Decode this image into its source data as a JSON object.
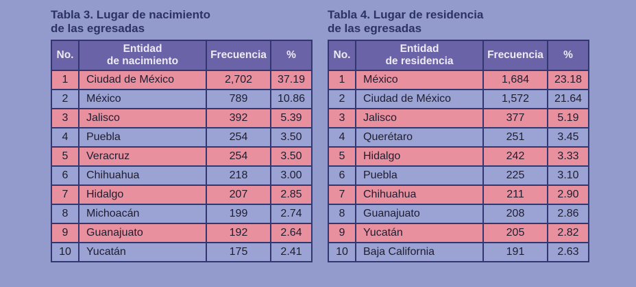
{
  "colors": {
    "page_background": "#929bcc",
    "header_background": "#6b63a7",
    "header_text": "#edeaf3",
    "row_pink": "#e9909f",
    "row_blue": "#9aa3d3",
    "border": "#32366e",
    "cell_text": "#1d1c30",
    "title_text": "#2c3263"
  },
  "tables": [
    {
      "title": [
        "Tabla 3. Lugar de nacimiento",
        "de las egresadas"
      ],
      "columns": {
        "no": "No.",
        "entity": [
          "Entidad",
          "de nacimiento"
        ],
        "frequency": "Frecuencia",
        "percent": "%"
      },
      "rows": [
        [
          "1",
          "Ciudad de México",
          "2,702",
          "37.19"
        ],
        [
          "2",
          "México",
          "789",
          "10.86"
        ],
        [
          "3",
          "Jalisco",
          "392",
          "5.39"
        ],
        [
          "4",
          "Puebla",
          "254",
          "3.50"
        ],
        [
          "5",
          "Veracruz",
          "254",
          "3.50"
        ],
        [
          "6",
          "Chihuahua",
          "218",
          "3.00"
        ],
        [
          "7",
          "Hidalgo",
          "207",
          "2.85"
        ],
        [
          "8",
          "Michoacán",
          "199",
          "2.74"
        ],
        [
          "9",
          "Guanajuato",
          "192",
          "2.64"
        ],
        [
          "10",
          "Yucatán",
          "175",
          "2.41"
        ]
      ]
    },
    {
      "title": [
        "Tabla 4. Lugar de residencia",
        "de las egresadas"
      ],
      "columns": {
        "no": "No.",
        "entity": [
          "Entidad",
          "de residencia"
        ],
        "frequency": "Frecuencia",
        "percent": "%"
      },
      "rows": [
        [
          "1",
          "México",
          "1,684",
          "23.18"
        ],
        [
          "2",
          "Ciudad de México",
          "1,572",
          "21.64"
        ],
        [
          "3",
          "Jalisco",
          "377",
          "5.19"
        ],
        [
          "4",
          "Querétaro",
          "251",
          "3.45"
        ],
        [
          "5",
          "Hidalgo",
          "242",
          "3.33"
        ],
        [
          "6",
          "Puebla",
          "225",
          "3.10"
        ],
        [
          "7",
          "Chihuahua",
          "211",
          "2.90"
        ],
        [
          "8",
          "Guanajuato",
          "208",
          "2.86"
        ],
        [
          "9",
          "Yucatán",
          "205",
          "2.82"
        ],
        [
          "10",
          "Baja California",
          "191",
          "2.63"
        ]
      ]
    }
  ]
}
